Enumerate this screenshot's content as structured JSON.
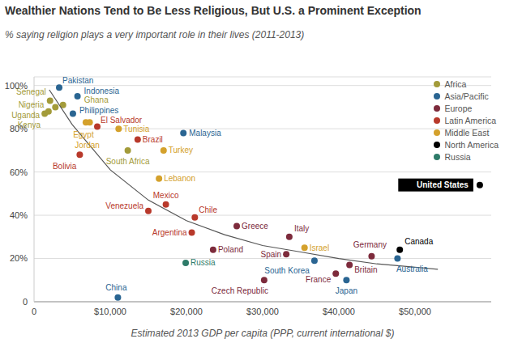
{
  "chart_data": {
    "type": "scatter",
    "title": "Wealthier Nations Tend to Be Less Religious, But U.S. a Prominent Exception",
    "subtitle": "% saying religion plays a very important role in their lives (2011-2013)",
    "x_label": "Estimated 2013 GDP per capita (PPP, current international $)",
    "xlim": [
      0,
      60000
    ],
    "xticks": [
      0,
      {
        "value": 10000,
        "label": "$10,000"
      },
      {
        "value": 20000,
        "label": "$20,000"
      },
      {
        "value": 30000,
        "label": "$30,000"
      },
      {
        "value": 40000,
        "label": "$40,000"
      },
      {
        "value": 50000,
        "label": "$50,000"
      }
    ],
    "ylim": [
      0,
      104
    ],
    "yticks": [
      0,
      {
        "value": 20,
        "label": "20%"
      },
      {
        "value": 40,
        "label": "40%"
      },
      {
        "value": 60,
        "label": "60%"
      },
      {
        "value": 80,
        "label": "80%"
      },
      {
        "value": 100,
        "label": "100%"
      }
    ],
    "grid": true,
    "legend": "top right",
    "series": [
      {
        "name": "Africa",
        "color": "#a39b3a",
        "x": [
          2100,
          3800,
          2800,
          1400,
          1900,
          12300
        ],
        "values": [
          93,
          91,
          90,
          87,
          88,
          70
        ],
        "labels": [
          "Senegal",
          "Ghana",
          "Nigeria",
          "Uganda",
          "Kenya",
          "South Africa"
        ]
      },
      {
        "name": "Asia/Pacific",
        "color": "#2a6592",
        "x": [
          3300,
          5700,
          5100,
          19600,
          11000,
          36800,
          41000,
          47700
        ],
        "values": [
          99,
          95,
          87,
          78,
          2,
          19,
          10,
          20
        ],
        "labels": [
          "Pakistan",
          "Indonesia",
          "Philippines",
          "Malaysia",
          "China",
          "South Korea",
          "Japan",
          "Australia"
        ]
      },
      {
        "name": "Europe",
        "color": "#7d2b3c",
        "x": [
          26600,
          33500,
          23500,
          33100,
          44300,
          30200,
          39600,
          41400
        ],
        "values": [
          35,
          30,
          24,
          22,
          21,
          10,
          13,
          17
        ],
        "labels": [
          "Greece",
          "Italy",
          "Poland",
          "Spain",
          "Germany",
          "Czech Republic",
          "France",
          "Britain"
        ]
      },
      {
        "name": "Latin America",
        "color": "#b8392b",
        "x": [
          8300,
          13600,
          6000,
          15000,
          17300,
          21100,
          20700
        ],
        "values": [
          81,
          75,
          68,
          42,
          45,
          39,
          32
        ],
        "labels": [
          "El Salvador",
          "Brazil",
          "Bolivia",
          "Venezuela",
          "Mexico",
          "Chile",
          "Argentina"
        ]
      },
      {
        "name": "Middle East",
        "color": "#d4a12c",
        "x": [
          11100,
          6800,
          7300,
          17000,
          16400,
          35500
        ],
        "values": [
          80,
          83,
          83,
          70,
          57,
          25
        ],
        "labels": [
          "Tunisia",
          "Egypt",
          "Jordan",
          "Turkey",
          "Lebanon",
          "Israel"
        ]
      },
      {
        "name": "North America",
        "color": "#000000",
        "x": [
          58500,
          48000
        ],
        "values": [
          54,
          24
        ],
        "labels": [
          "United States",
          "Canada"
        ]
      },
      {
        "name": "Russia",
        "color": "#2e7b69",
        "x": [
          19900
        ],
        "values": [
          18
        ],
        "labels": [
          "Russia"
        ]
      },
      {
        "type": "line",
        "color": "#555555",
        "x": [
          2000,
          5000,
          10000,
          15000,
          20000,
          25000,
          30000,
          35000,
          40000,
          45000,
          50000,
          53000
        ],
        "values": [
          98,
          82,
          61,
          47,
          37.5,
          31,
          26,
          23,
          20,
          17.5,
          16,
          15
        ]
      }
    ]
  }
}
